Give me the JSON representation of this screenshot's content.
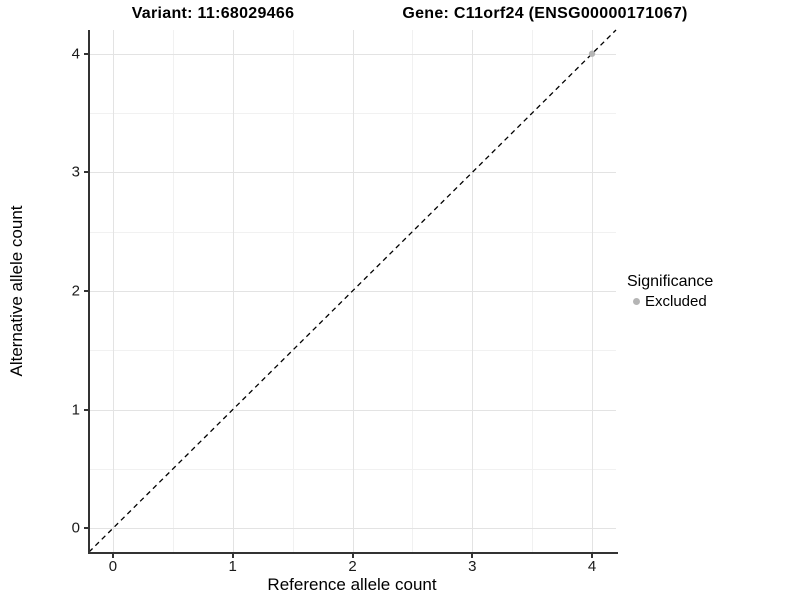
{
  "chart_data": {
    "type": "scatter",
    "title_left": "Variant: 11:68029466",
    "title_right": "Gene: C11orf24 (ENSG00000171067)",
    "xlabel": "Reference allele count",
    "ylabel": "Alternative allele count",
    "xlim": [
      -0.2,
      4.2
    ],
    "ylim": [
      -0.2,
      4.2
    ],
    "x_major_ticks": [
      0,
      1,
      2,
      3,
      4
    ],
    "y_major_ticks": [
      0,
      1,
      2,
      3,
      4
    ],
    "x_minor_ticks": [
      0.5,
      1.5,
      2.5,
      3.5
    ],
    "y_minor_ticks": [
      0.5,
      1.5,
      2.5,
      3.5
    ],
    "grid": true,
    "series": [
      {
        "name": "Excluded",
        "marker": "circle",
        "color": "#b5b5b5",
        "points": [
          {
            "x": 4,
            "y": 4
          }
        ]
      }
    ],
    "reference_line": {
      "name": "identity",
      "slope": 1,
      "intercept": 0,
      "style": "dashed",
      "color": "#000000",
      "x1": -0.2,
      "y1": -0.2,
      "x2": 4.2,
      "y2": 4.2
    },
    "legend": {
      "title": "Significance",
      "position": "right",
      "entries": [
        {
          "label": "Excluded",
          "color": "#b5b5b5",
          "marker": "circle"
        }
      ]
    },
    "colors": {
      "grid_major": "#e3e3e3",
      "grid_minor": "#f1f1f1",
      "axis_line": "#333333",
      "point": "#b5b5b5"
    }
  }
}
